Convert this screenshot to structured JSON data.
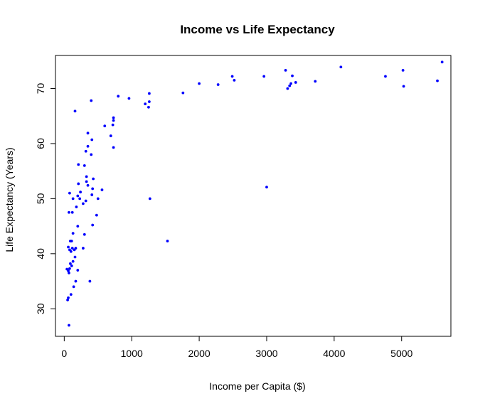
{
  "chart_data": {
    "type": "scatter",
    "title": "Income vs Life Expectancy",
    "xlabel": "Income per Capita ($)",
    "ylabel": "Life Expectancy (Years)",
    "xlim": [
      -130,
      5730
    ],
    "ylim": [
      25,
      76
    ],
    "x_ticks": [
      0,
      1000,
      2000,
      3000,
      4000,
      5000
    ],
    "y_ticks": [
      30,
      40,
      50,
      60,
      70
    ],
    "grid": false,
    "legend": "none",
    "point_color": "#0000ff",
    "points": [
      {
        "x": 50,
        "y": 31.6
      },
      {
        "x": 70,
        "y": 27.0
      },
      {
        "x": 60,
        "y": 32.0
      },
      {
        "x": 100,
        "y": 32.6
      },
      {
        "x": 140,
        "y": 34.0
      },
      {
        "x": 170,
        "y": 35.0
      },
      {
        "x": 380,
        "y": 35.0
      },
      {
        "x": 60,
        "y": 36.9
      },
      {
        "x": 80,
        "y": 37.3
      },
      {
        "x": 110,
        "y": 37.8
      },
      {
        "x": 200,
        "y": 37.0
      },
      {
        "x": 40,
        "y": 37.2
      },
      {
        "x": 70,
        "y": 36.5
      },
      {
        "x": 90,
        "y": 38.2
      },
      {
        "x": 130,
        "y": 38.6
      },
      {
        "x": 160,
        "y": 39.4
      },
      {
        "x": 80,
        "y": 40.7
      },
      {
        "x": 100,
        "y": 40.4
      },
      {
        "x": 120,
        "y": 41.0
      },
      {
        "x": 150,
        "y": 40.7
      },
      {
        "x": 170,
        "y": 41.0
      },
      {
        "x": 280,
        "y": 41.0
      },
      {
        "x": 60,
        "y": 41.2
      },
      {
        "x": 90,
        "y": 42.3
      },
      {
        "x": 110,
        "y": 42.3
      },
      {
        "x": 130,
        "y": 43.7
      },
      {
        "x": 300,
        "y": 43.5
      },
      {
        "x": 1530,
        "y": 42.3
      },
      {
        "x": 200,
        "y": 45.0
      },
      {
        "x": 420,
        "y": 45.2
      },
      {
        "x": 480,
        "y": 47.0
      },
      {
        "x": 70,
        "y": 47.5
      },
      {
        "x": 120,
        "y": 47.5
      },
      {
        "x": 180,
        "y": 48.5
      },
      {
        "x": 280,
        "y": 49.1
      },
      {
        "x": 320,
        "y": 49.6
      },
      {
        "x": 230,
        "y": 50.0
      },
      {
        "x": 130,
        "y": 50.0
      },
      {
        "x": 200,
        "y": 50.5
      },
      {
        "x": 500,
        "y": 50.0
      },
      {
        "x": 1270,
        "y": 50.0
      },
      {
        "x": 410,
        "y": 50.7
      },
      {
        "x": 80,
        "y": 51.0
      },
      {
        "x": 240,
        "y": 51.2
      },
      {
        "x": 420,
        "y": 51.8
      },
      {
        "x": 560,
        "y": 51.6
      },
      {
        "x": 3000,
        "y": 52.1
      },
      {
        "x": 210,
        "y": 52.7
      },
      {
        "x": 350,
        "y": 52.4
      },
      {
        "x": 330,
        "y": 53.1
      },
      {
        "x": 430,
        "y": 53.6
      },
      {
        "x": 330,
        "y": 54.0
      },
      {
        "x": 210,
        "y": 56.2
      },
      {
        "x": 300,
        "y": 56.0
      },
      {
        "x": 400,
        "y": 58.0
      },
      {
        "x": 320,
        "y": 58.6
      },
      {
        "x": 350,
        "y": 59.5
      },
      {
        "x": 730,
        "y": 59.3
      },
      {
        "x": 410,
        "y": 60.7
      },
      {
        "x": 350,
        "y": 61.9
      },
      {
        "x": 690,
        "y": 61.4
      },
      {
        "x": 600,
        "y": 63.2
      },
      {
        "x": 720,
        "y": 63.4
      },
      {
        "x": 730,
        "y": 64.2
      },
      {
        "x": 730,
        "y": 64.7
      },
      {
        "x": 160,
        "y": 65.9
      },
      {
        "x": 400,
        "y": 67.8
      },
      {
        "x": 800,
        "y": 68.6
      },
      {
        "x": 960,
        "y": 68.2
      },
      {
        "x": 1200,
        "y": 67.2
      },
      {
        "x": 1250,
        "y": 66.6
      },
      {
        "x": 1260,
        "y": 67.6
      },
      {
        "x": 1260,
        "y": 69.1
      },
      {
        "x": 1760,
        "y": 69.2
      },
      {
        "x": 2000,
        "y": 70.9
      },
      {
        "x": 2280,
        "y": 70.7
      },
      {
        "x": 2490,
        "y": 72.2
      },
      {
        "x": 2520,
        "y": 71.5
      },
      {
        "x": 2960,
        "y": 72.2
      },
      {
        "x": 3280,
        "y": 73.3
      },
      {
        "x": 3310,
        "y": 70.0
      },
      {
        "x": 3340,
        "y": 70.5
      },
      {
        "x": 3360,
        "y": 70.9
      },
      {
        "x": 3380,
        "y": 72.3
      },
      {
        "x": 3430,
        "y": 71.1
      },
      {
        "x": 3720,
        "y": 71.3
      },
      {
        "x": 4100,
        "y": 73.9
      },
      {
        "x": 4760,
        "y": 72.2
      },
      {
        "x": 5020,
        "y": 73.3
      },
      {
        "x": 5030,
        "y": 70.4
      },
      {
        "x": 5530,
        "y": 71.4
      },
      {
        "x": 5600,
        "y": 74.8
      }
    ]
  }
}
